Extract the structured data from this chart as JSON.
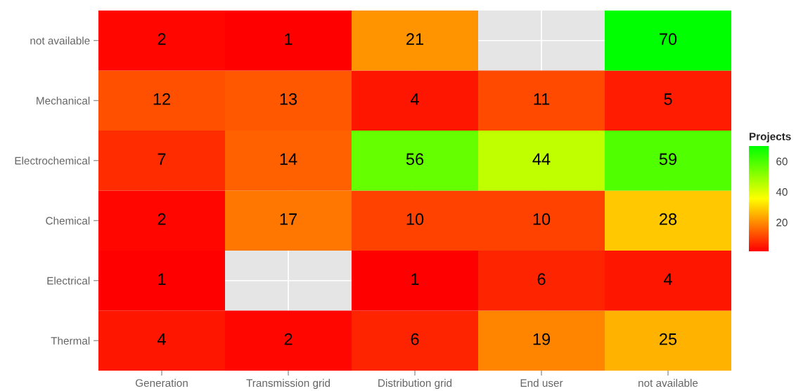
{
  "chart_data": {
    "type": "heatmap",
    "clabel": "Projects",
    "categories": [
      "Generation",
      "Transmission grid",
      "Distribution grid",
      "End user",
      "not available"
    ],
    "y_categories": [
      "not available",
      "Mechanical",
      "Electrochemical",
      "Chemical",
      "Electrical",
      "Thermal"
    ],
    "cells": [
      [
        2,
        1,
        21,
        null,
        70
      ],
      [
        12,
        13,
        4,
        11,
        5
      ],
      [
        7,
        14,
        56,
        44,
        59
      ],
      [
        2,
        17,
        10,
        10,
        28
      ],
      [
        1,
        null,
        1,
        6,
        4
      ],
      [
        4,
        2,
        6,
        19,
        25
      ]
    ],
    "colors": [
      "#ff0000",
      "#ffff00",
      "#00ff00"
    ],
    "clim": [
      1,
      70
    ],
    "cticks": [
      20,
      40,
      60
    ],
    "data_labels": true,
    "grid": true
  }
}
